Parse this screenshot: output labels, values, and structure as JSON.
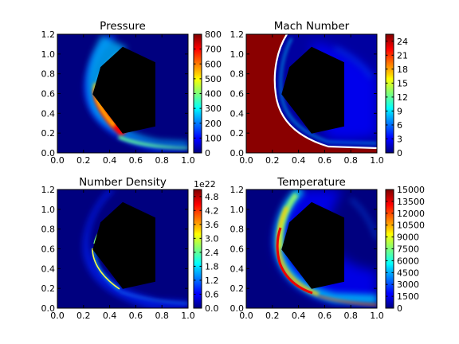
{
  "figure": {
    "background": "#ffffff"
  },
  "colors": {
    "jet_low": "#00007f",
    "jet_mid_blue": "#0000ff",
    "jet_cyan": "#00ffff",
    "jet_yellow": "#ffff00",
    "jet_red": "#ff0000",
    "jet_high": "#7f0000",
    "body_fill": "#000000"
  },
  "chart_data": [
    {
      "type": "heatmap",
      "title": "Pressure",
      "colormap": "jet",
      "xlim": [
        0.0,
        1.0
      ],
      "ylim": [
        0.0,
        1.2
      ],
      "xticks": [
        "0.0",
        "0.2",
        "0.4",
        "0.6",
        "0.8",
        "1.0"
      ],
      "yticks": [
        "0.0",
        "0.2",
        "0.4",
        "0.6",
        "0.8",
        "1.0",
        "1.2"
      ],
      "colorbar": {
        "range": [
          0,
          800
        ],
        "ticks": [
          "0",
          "100",
          "200",
          "300",
          "400",
          "500",
          "600",
          "700",
          "800"
        ],
        "offset_text": ""
      },
      "body_polygon": [
        [
          0.27,
          0.6
        ],
        [
          0.33,
          0.83
        ],
        [
          0.5,
          1.0
        ],
        [
          0.75,
          0.87
        ],
        [
          0.75,
          0.33
        ],
        [
          0.5,
          0.17
        ]
      ],
      "features": {
        "shock_peak": 800,
        "freestream": 0
      }
    },
    {
      "type": "heatmap",
      "title": "Mach Number",
      "colormap": "jet",
      "xlim": [
        0.0,
        1.0
      ],
      "ylim": [
        0.0,
        1.2
      ],
      "xticks": [
        "0.0",
        "0.2",
        "0.4",
        "0.6",
        "0.8",
        "1.0"
      ],
      "yticks": [
        "0.0",
        "0.2",
        "0.4",
        "0.6",
        "0.8",
        "1.0",
        "1.2"
      ],
      "colorbar": {
        "range": [
          0,
          25.5
        ],
        "ticks": [
          "0",
          "3",
          "6",
          "9",
          "12",
          "15",
          "18",
          "21",
          "24"
        ],
        "offset_text": ""
      },
      "body_polygon": [
        [
          0.27,
          0.6
        ],
        [
          0.33,
          0.83
        ],
        [
          0.5,
          1.0
        ],
        [
          0.75,
          0.87
        ],
        [
          0.75,
          0.33
        ],
        [
          0.5,
          0.17
        ]
      ],
      "features": {
        "freestream": 25.5,
        "post_shock": 1
      }
    },
    {
      "type": "heatmap",
      "title": "Number Density",
      "colormap": "jet",
      "xlim": [
        0.0,
        1.0
      ],
      "ylim": [
        0.0,
        1.2
      ],
      "xticks": [
        "0.0",
        "0.2",
        "0.4",
        "0.6",
        "0.8",
        "1.0"
      ],
      "yticks": [
        "0.0",
        "0.2",
        "0.4",
        "0.6",
        "0.8",
        "1.0",
        "1.2"
      ],
      "colorbar": {
        "range": [
          0,
          5.1
        ],
        "ticks": [
          "0.0",
          "0.6",
          "1.2",
          "1.8",
          "2.4",
          "3.0",
          "3.6",
          "4.2",
          "4.8"
        ],
        "offset_text": "1e22"
      },
      "body_polygon": [
        [
          0.27,
          0.6
        ],
        [
          0.33,
          0.83
        ],
        [
          0.5,
          1.0
        ],
        [
          0.75,
          0.87
        ],
        [
          0.75,
          0.33
        ],
        [
          0.5,
          0.17
        ]
      ],
      "features": {
        "shock_peak": 5.1,
        "freestream": 0
      }
    },
    {
      "type": "heatmap",
      "title": "Temperature",
      "colormap": "jet",
      "xlim": [
        0.0,
        1.0
      ],
      "ylim": [
        0.0,
        1.2
      ],
      "xticks": [
        "0.0",
        "0.2",
        "0.4",
        "0.6",
        "0.8",
        "1.0"
      ],
      "yticks": [
        "0.0",
        "0.2",
        "0.4",
        "0.6",
        "0.8",
        "1.0",
        "1.2"
      ],
      "colorbar": {
        "range": [
          0,
          15000
        ],
        "ticks": [
          "0",
          "1500",
          "3000",
          "4500",
          "6000",
          "7500",
          "9000",
          "10500",
          "12000",
          "13500",
          "15000"
        ],
        "offset_text": ""
      },
      "body_polygon": [
        [
          0.27,
          0.6
        ],
        [
          0.33,
          0.83
        ],
        [
          0.5,
          1.0
        ],
        [
          0.75,
          0.87
        ],
        [
          0.75,
          0.33
        ],
        [
          0.5,
          0.17
        ]
      ],
      "features": {
        "shock_peak": 15000,
        "freestream": 0
      }
    }
  ]
}
